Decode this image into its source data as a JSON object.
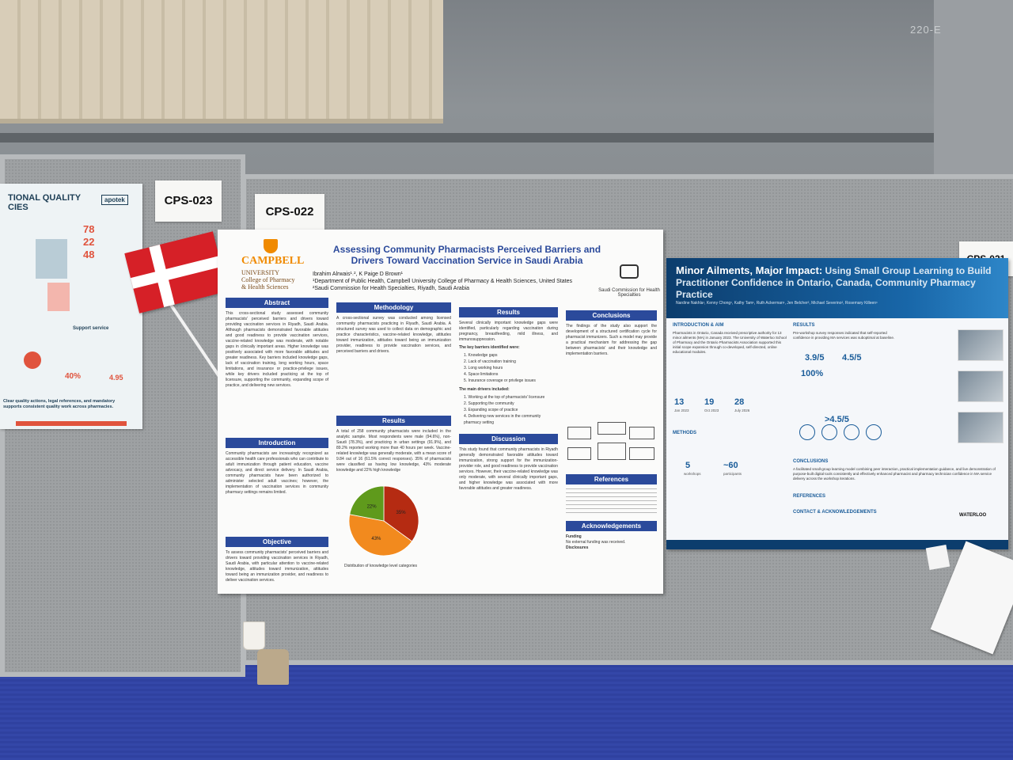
{
  "scene": {
    "ceiling_sign": "220-E",
    "board_labels": [
      "CPS-023",
      "CPS-022",
      "CPS-021"
    ]
  },
  "left_poster": {
    "title": "TIONAL QUALITY\nCIES",
    "logo": "apotek",
    "stats": [
      "78",
      "22",
      "48"
    ],
    "bottom_stat_1": "40%",
    "bottom_stat_2": "4.95",
    "section_1": "Support service",
    "footer": "Clear quality actions, legal references, and mandatory supports consistent quality work across pharmacies."
  },
  "main_poster": {
    "logo_text": "CAMPBELL",
    "logo_sub_1": "UNIVERSITY",
    "logo_sub_2": "College of Pharmacy",
    "logo_sub_3": "& Health Sciences",
    "title": "Assessing Community Pharmacists Perceived Barriers and Drivers Toward Vaccination Service in Saudi Arabia",
    "authors": "Ibrahim Alrwais¹˒², K Paige D Brown¹",
    "affiliation_1": "¹Department of Public Health, Campbell University College of Pharmacy & Health Sciences, United States",
    "affiliation_2": "²Saudi Commission for Health Specialties, Riyadh, Saudi Arabia",
    "partner": "Saudi Commission for Health Specialties",
    "sections": {
      "abstract": "Abstract",
      "introduction": "Introduction",
      "objective": "Objective",
      "methodology": "Methodology",
      "results_mid": "Results",
      "results_top": "Results",
      "discussion": "Discussion",
      "conclusions": "Conclusions",
      "references": "References",
      "acknowledgements": "Acknowledgements"
    },
    "abstract_text": "This cross-sectional study assessed community pharmacists' perceived barriers and drivers toward providing vaccination services in Riyadh, Saudi Arabia. Although pharmacists demonstrated favorable attitudes and good readiness to provide vaccination services, vaccine-related knowledge was moderate, with notable gaps in clinically important areas. Higher knowledge was positively associated with more favorable attitudes and greater readiness. Key barriers included knowledge gaps, lack of vaccination training, long working hours, space limitations, and insurance or practice-privilege issues, while key drivers included practicing at the top of licensure, supporting the community, expanding scope of practice, and delivering new services.",
    "intro_text": "Community pharmacists are increasingly recognized as accessible health care professionals who can contribute to adult immunization through patient education, vaccine advocacy, and direct service delivery. In Saudi Arabia, community pharmacists have been authorized to administer selected adult vaccines; however, the implementation of vaccination services in community pharmacy settings remains limited.",
    "objective_text": "To assess community pharmacists' perceived barriers and drivers toward providing vaccination services in Riyadh, Saudi Arabia, with particular attention to vaccine-related knowledge, attitudes toward immunization, attitudes toward being an immunization provider, and readiness to deliver vaccination services.",
    "method_text": "A cross-sectional survey was conducted among licensed community pharmacists practicing in Riyadh, Saudi Arabia. A structured survey was used to collect data on demographic and practice characteristics, vaccine-related knowledge, attitudes toward immunization, attitudes toward being an immunization provider, readiness to provide vaccination services, and perceived barriers and drivers.",
    "results_text": "A total of 258 community pharmacists were included in the analytic sample. Most respondents were male (94.6%), non-Saudi (78.3%), and practicing in urban settings (91.9%), and 89.2% reported working more than 40 hours per week. Vaccine-related knowledge was generally moderate, with a mean score of 9.84 out of 16 (61.5% correct responses). 35% of pharmacists were classified as having low knowledge, 43% moderate knowledge and 22% high knowledge",
    "barriers_intro": "Several clinically important knowledge gaps were identified, particularly regarding vaccination during pregnancy, breastfeeding, mild illness, and immunosuppression.",
    "barriers_head": "The key barriers identified were:",
    "barriers": [
      "1.  Knowledge gaps",
      "2.  Lack of vaccination training",
      "3.  Long working hours",
      "4.  Space limitations",
      "5.  Insurance coverage or privilege issues"
    ],
    "drivers_head": "The main drivers included:",
    "drivers": [
      "1.  Working at the top of pharmacists' licensure",
      "2.  Supporting the community",
      "3.  Expanding scope of practice",
      "4.  Delivering new services in the community pharmacy setting"
    ],
    "discussion_text": "This study found that community pharmacists in Riyadh generally demonstrated favorable attitudes toward immunization, strong support for the immunization-provider role, and good readiness to provide vaccination services. However, their vaccine-related knowledge was only moderate, with several clinically important gaps, and higher knowledge was associated with more favorable attitudes and greater readiness.",
    "conclusions_text": "The findings of the study also support the development of a structured certification cycle for pharmacist immunizers. Such a model may provide a practical mechanism for addressing the gap between pharmacists' and their knowledge and implementation barriers.",
    "funding": "Funding",
    "funding_text": "No external funding was received.",
    "disclosures": "Disclosures",
    "pie": {
      "caption": "Distribution of knowledge level categories",
      "slices": [
        {
          "label": "35%",
          "value": 35,
          "color": "#b52b12"
        },
        {
          "label": "43%",
          "value": 43,
          "color": "#f28a1e"
        },
        {
          "label": "22%",
          "value": 22,
          "color": "#5f9a1c"
        }
      ]
    }
  },
  "right_poster": {
    "title_bold": "Minor Ailments, Major Impact:",
    "title_rest": "Using Small Group Learning to Build Practitioner Confidence in Ontario, Canada, Community Pharmacy Practice",
    "authors": "Nardine Nakhla¹, Kenny Chong¹, Kathy Tam¹, Ruth Ackerman¹, Jen Belcher², Michael Severino², Rosemary Killeen¹",
    "sections": {
      "intro": "INTRODUCTION & AIM",
      "methods": "METHODS",
      "results": "RESULTS",
      "conclusions": "CONCLUSIONS",
      "references": "REFERENCES",
      "contact": "CONTACT & ACKNOWLEDGEMENTS"
    },
    "intro_text": "Pharmacists in Ontario, Canada received prescriptive authority for 13 minor ailments (MA) in January 2023. The University of Waterloo School of Pharmacy and the Ontario Pharmacists Association supported this initial scope expansion through co-developed, self-directed, online educational modules.",
    "timeline": [
      "13",
      "19",
      "28"
    ],
    "timeline_dates": [
      "Jan 2023",
      "Oct 2023",
      "July 2026"
    ],
    "methods_stats": [
      "5",
      "~60"
    ],
    "methods_stats_sub": [
      "workshops",
      "participants"
    ],
    "results_stats": [
      "3.9/5",
      "4.5/5",
      "100%",
      ">4.5/5"
    ],
    "results_text": "Pre-workshop survey responses indicated that self-reported confidence in providing MA services was suboptimal at baseline.",
    "conclusions_text": "A facilitated small-group learning model combining peer interaction, practical implementation guidance, and live demonstration of purpose-built digital tools consistently and effectively enhanced pharmacist and pharmacy technician confidence in MA service delivery across the workshop iterations.",
    "logo": "WATERLOO"
  }
}
